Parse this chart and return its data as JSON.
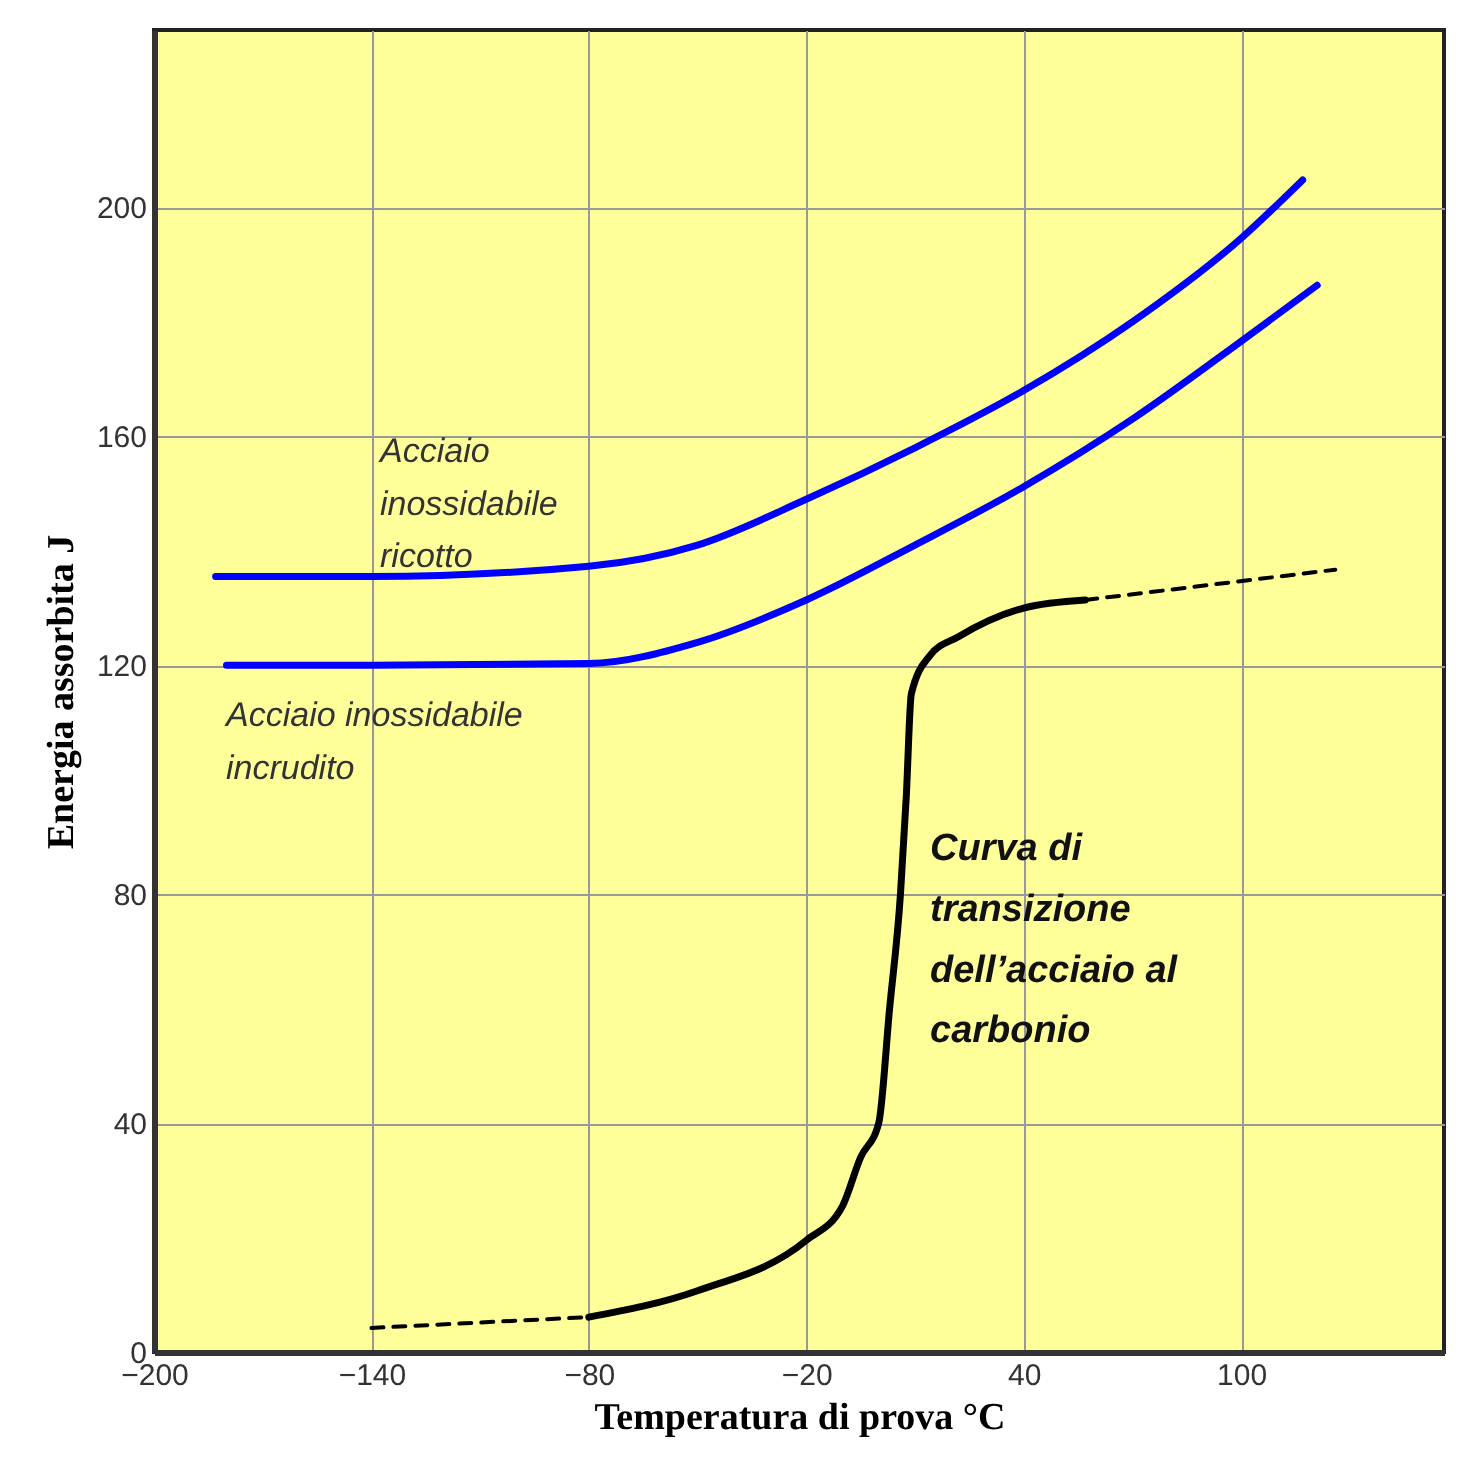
{
  "chart_data": {
    "type": "line",
    "xlabel": "Temperatura di prova °C",
    "ylabel": "Energia assorbita J",
    "xlim": [
      -200,
      156
    ],
    "xticks": [
      -200,
      -140,
      -80,
      -20,
      40,
      100
    ],
    "ylim": [
      0,
      231
    ],
    "yticks": [
      0,
      40,
      80,
      120,
      160,
      200
    ],
    "grid": true,
    "marker": "none",
    "series": [
      {
        "name": "Acciaio inossidabile ricotto",
        "color": "#0000ff",
        "line_style": "solid",
        "x": [
          -183,
          -140,
          -80,
          -50,
          -20,
          10,
          40,
          70,
          100,
          117
        ],
        "values": [
          135.5,
          135.5,
          137.3,
          141,
          149,
          158,
          168,
          180,
          194.6,
          204.8
        ]
      },
      {
        "name": "Acciaio inossidabile incrudito",
        "color": "#0000ff",
        "line_style": "solid",
        "x": [
          -180,
          -140,
          -80,
          -50,
          -20,
          10,
          40,
          70,
          100,
          121
        ],
        "values": [
          120,
          120,
          120.3,
          124,
          131.4,
          141,
          151.2,
          163,
          176.6,
          186.4
        ]
      },
      {
        "color": "#000000",
        "line_style": "dashed",
        "x": [
          -140,
          -80
        ],
        "values": [
          4.2,
          6.1
        ]
      },
      {
        "name": "Curva di transizione dell’acciaio al carbonio",
        "color": "#000000",
        "line_style": "solid",
        "x": [
          -80,
          -50,
          -20,
          -10,
          -5,
          0,
          3,
          6,
          7.6,
          9,
          14,
          22,
          40,
          57
        ],
        "values": [
          6.1,
          10.7,
          19.5,
          25.5,
          34,
          40,
          60,
          80,
          97,
          115,
          121.6,
          125,
          130,
          131.4
        ]
      },
      {
        "color": "#000000",
        "line_style": "dashed",
        "x": [
          57,
          126
        ],
        "values": [
          131.4,
          136.7
        ]
      }
    ]
  }
}
